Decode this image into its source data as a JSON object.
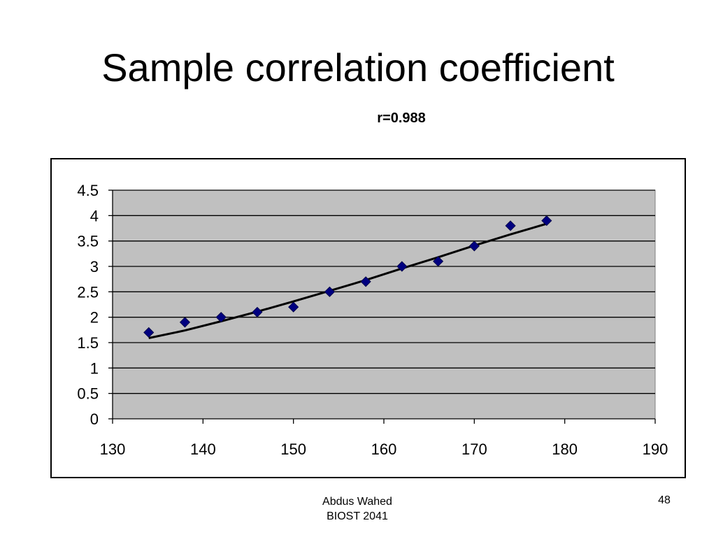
{
  "slide": {
    "title": "Sample correlation coefficient",
    "footer_author": "Abdus Wahed",
    "footer_course": "BIOST 2041",
    "page_number": "48"
  },
  "chart_data": {
    "type": "scatter",
    "title": "r=0.988",
    "xlabel": "",
    "ylabel": "",
    "xlim": [
      130,
      190
    ],
    "ylim": [
      0,
      4.5
    ],
    "x_ticks": [
      130,
      140,
      150,
      160,
      170,
      180,
      190
    ],
    "y_ticks": [
      0,
      0.5,
      1,
      1.5,
      2,
      2.5,
      3,
      3.5,
      4,
      4.5
    ],
    "x_tick_labels": [
      "130",
      "140",
      "150",
      "160",
      "170",
      "180",
      "190"
    ],
    "y_tick_labels": [
      "0",
      "0.5",
      "1",
      "1.5",
      "2",
      "2.5",
      "3",
      "3.5",
      "4",
      "4.5"
    ],
    "grid": "horizontal",
    "legend": "none",
    "plot_background": "#c0c0c0",
    "marker_color": "#000080",
    "line_color": "#000000",
    "series": [
      {
        "x": [
          134,
          138,
          142,
          146,
          150,
          154,
          158,
          162,
          166,
          170,
          174,
          178
        ],
        "y": [
          1.7,
          1.9,
          2.0,
          2.1,
          2.2,
          2.5,
          2.7,
          3.0,
          3.1,
          3.4,
          3.8,
          3.9
        ]
      }
    ],
    "trendline": {
      "x": [
        134,
        138,
        142,
        146,
        150,
        154,
        158,
        162,
        166,
        170,
        174,
        178
      ],
      "y": [
        1.59,
        1.74,
        1.92,
        2.11,
        2.31,
        2.52,
        2.73,
        2.96,
        3.18,
        3.41,
        3.63,
        3.84
      ]
    }
  }
}
